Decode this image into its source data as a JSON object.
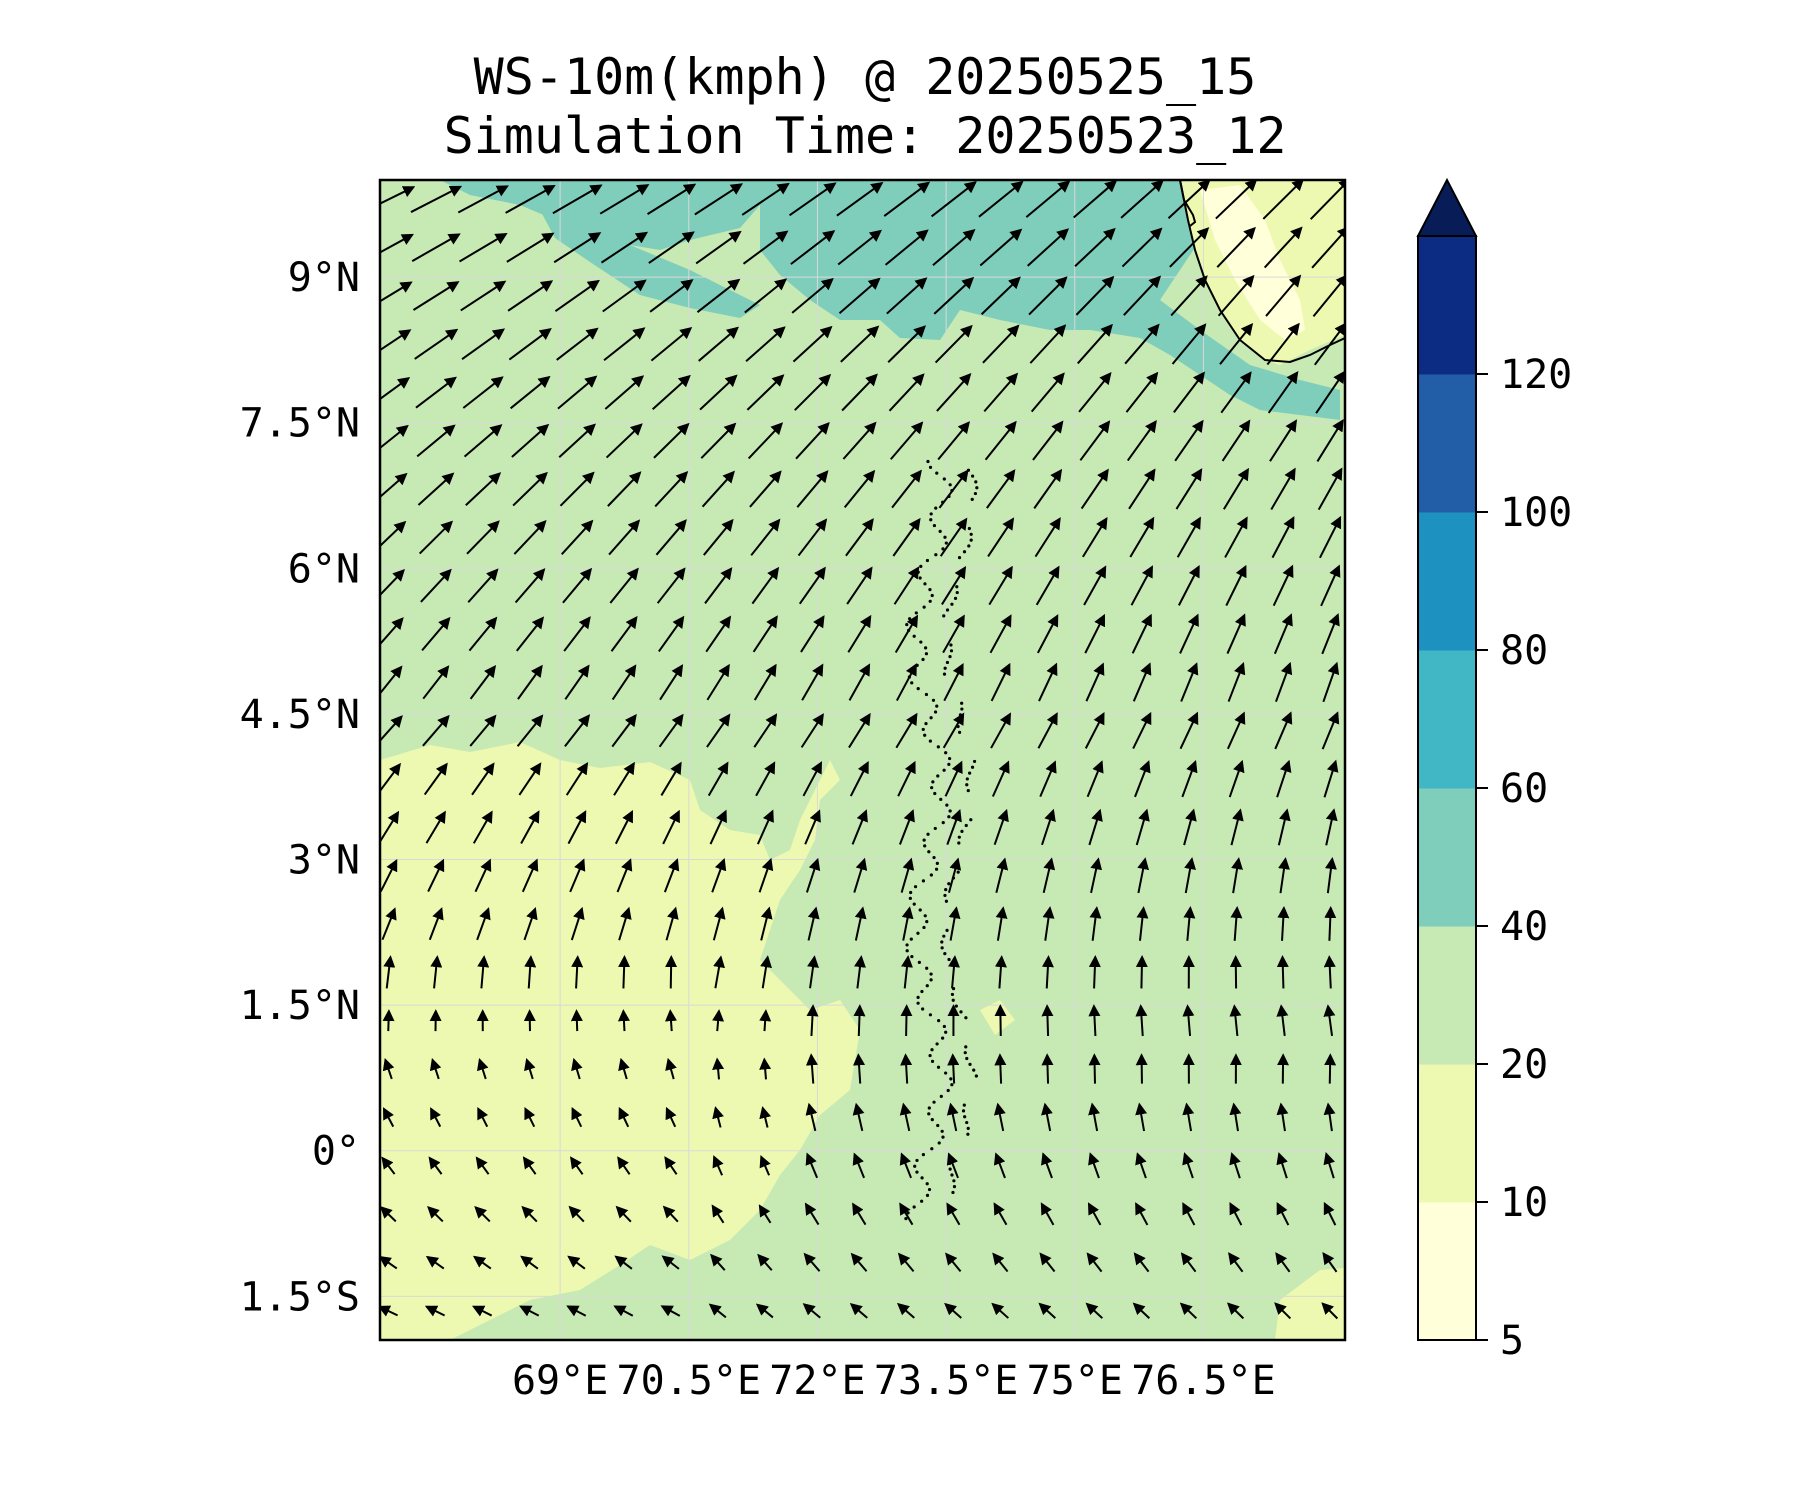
{
  "title": {
    "line1": "WS-10m(kmph) @ 20250525_15",
    "line2": "Simulation Time: 20250523_12"
  },
  "chart_data": {
    "type": "heatmap",
    "variable": "10 m wind speed (kmph) with wind vectors",
    "xlabel": "",
    "ylabel": "",
    "extent": {
      "lon": [
        66.9,
        78.15
      ],
      "lat": [
        -1.95,
        10.0
      ]
    },
    "xticks": [
      {
        "value": 69.0,
        "label": "69°E"
      },
      {
        "value": 70.5,
        "label": "70.5°E"
      },
      {
        "value": 72.0,
        "label": "72°E"
      },
      {
        "value": 73.5,
        "label": "73.5°E"
      },
      {
        "value": 75.0,
        "label": "75°E"
      },
      {
        "value": 76.5,
        "label": "76.5°E"
      }
    ],
    "yticks": [
      {
        "value": 9.0,
        "label": "9°N"
      },
      {
        "value": 7.5,
        "label": "7.5°N"
      },
      {
        "value": 6.0,
        "label": "6°N"
      },
      {
        "value": 4.5,
        "label": "4.5°N"
      },
      {
        "value": 3.0,
        "label": "3°N"
      },
      {
        "value": 1.5,
        "label": "1.5°N"
      },
      {
        "value": 0.0,
        "label": "0°"
      },
      {
        "value": -1.5,
        "label": "1.5°S"
      }
    ],
    "grid": true,
    "colorbar": {
      "position": "right",
      "extend": "max",
      "levels": [
        5,
        10,
        20,
        40,
        60,
        80,
        100,
        120
      ],
      "tick_labels": [
        "5",
        "10",
        "20",
        "40",
        "60",
        "80",
        "100",
        "120"
      ],
      "colors": [
        "#ffffd9",
        "#edf8b1",
        "#c7e9b4",
        "#7fcdbb",
        "#41b6c4",
        "#1d91c0",
        "#225ea8",
        "#0c2c84"
      ],
      "over_color": "#081d58"
    },
    "speed_regions": [
      {
        "band": "10-20",
        "description": "southwest of domain: lon 66.9-73, lat -1.95-4.0",
        "color": "#edf8b1"
      },
      {
        "band": "20-40",
        "description": "most of domain north of 4°N and east of 73°E",
        "color": "#c7e9b4"
      },
      {
        "band": "40-60",
        "description": "northern strip near 9-10°N and off the Kerala coast",
        "color": "#7fcdbb"
      },
      {
        "band": "5-20",
        "description": "Indian land area in the northeast corner",
        "color": "#edf8b1"
      }
    ],
    "wind_vectors": {
      "description": "westerly/southwesterly flow in the north turning to southerly/south-easterly in the south",
      "north_direction_deg": 25,
      "south_direction_deg": 150
    }
  },
  "colors": {
    "axis": "#000000",
    "grid": "#d9d9d9",
    "coast": "#000000"
  }
}
